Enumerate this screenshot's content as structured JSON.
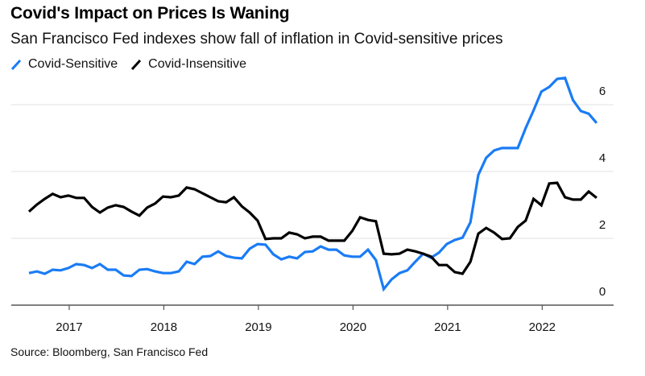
{
  "chart_data": {
    "type": "line",
    "title": "Covid's Impact on Prices Is Waning",
    "subtitle": "San Francisco Fed indexes show fall of inflation in Covid-sensitive prices",
    "source": "Source: Bloomberg, San Francisco Fed",
    "xlabel": "",
    "ylabel": "",
    "x_start": "2016-08",
    "x_end": "2022-08",
    "x_frequency": "monthly",
    "x_ticks": [
      "2017",
      "2018",
      "2019",
      "2020",
      "2021",
      "2022"
    ],
    "y_ticks": [
      "0",
      "2",
      "4",
      "6"
    ],
    "ylim": [
      0,
      6.5
    ],
    "y_axis_side": "right",
    "grid": true,
    "legend": "top-left",
    "series": [
      {
        "name": "Covid-Sensitive",
        "color": "#1a7cf5",
        "values": [
          0.96,
          1.01,
          0.94,
          1.06,
          1.04,
          1.11,
          1.23,
          1.2,
          1.11,
          1.23,
          1.06,
          1.06,
          0.89,
          0.87,
          1.06,
          1.08,
          1.01,
          0.96,
          0.96,
          1.01,
          1.3,
          1.23,
          1.45,
          1.47,
          1.61,
          1.47,
          1.42,
          1.4,
          1.69,
          1.83,
          1.81,
          1.52,
          1.37,
          1.45,
          1.4,
          1.59,
          1.61,
          1.76,
          1.66,
          1.66,
          1.49,
          1.45,
          1.45,
          1.66,
          1.35,
          0.48,
          0.77,
          0.96,
          1.04,
          1.3,
          1.54,
          1.42,
          1.57,
          1.83,
          1.95,
          2.02,
          2.48,
          3.9,
          4.41,
          4.63,
          4.7,
          4.7,
          4.7,
          5.3,
          5.83,
          6.39,
          6.53,
          6.77,
          6.8,
          6.14,
          5.81,
          5.73,
          5.45
        ]
      },
      {
        "name": "Covid-Insensitive",
        "color": "#000000",
        "values": [
          2.8,
          3.01,
          3.18,
          3.33,
          3.23,
          3.28,
          3.21,
          3.21,
          2.94,
          2.77,
          2.92,
          2.99,
          2.94,
          2.8,
          2.68,
          2.92,
          3.04,
          3.25,
          3.23,
          3.28,
          3.52,
          3.47,
          3.35,
          3.23,
          3.11,
          3.08,
          3.23,
          2.96,
          2.77,
          2.53,
          1.98,
          2.0,
          2.0,
          2.17,
          2.12,
          2.0,
          2.05,
          2.05,
          1.93,
          1.93,
          1.93,
          2.22,
          2.63,
          2.55,
          2.51,
          1.54,
          1.52,
          1.54,
          1.66,
          1.61,
          1.54,
          1.45,
          1.2,
          1.2,
          0.99,
          0.94,
          1.3,
          2.14,
          2.31,
          2.17,
          1.98,
          2.0,
          2.34,
          2.53,
          3.18,
          2.99,
          3.64,
          3.66,
          3.23,
          3.16,
          3.16,
          3.4,
          3.21
        ]
      }
    ]
  }
}
